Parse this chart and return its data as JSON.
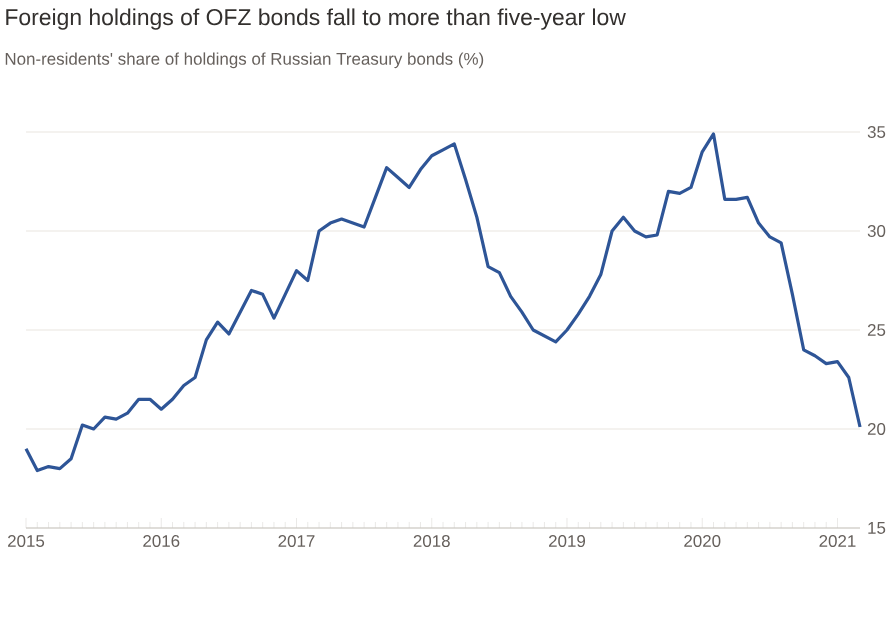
{
  "chart_data": {
    "type": "line",
    "title": "Foreign holdings of OFZ bonds fall to more than five-year low",
    "subtitle": "Non-residents' share of holdings of Russian Treasury bonds (%)",
    "x": [
      "2015-01",
      "2015-02",
      "2015-03",
      "2015-04",
      "2015-05",
      "2015-06",
      "2015-07",
      "2015-08",
      "2015-09",
      "2015-10",
      "2015-11",
      "2015-12",
      "2016-01",
      "2016-02",
      "2016-03",
      "2016-04",
      "2016-05",
      "2016-06",
      "2016-07",
      "2016-08",
      "2016-09",
      "2016-10",
      "2016-11",
      "2016-12",
      "2017-01",
      "2017-02",
      "2017-03",
      "2017-04",
      "2017-05",
      "2017-06",
      "2017-07",
      "2017-08",
      "2017-09",
      "2017-10",
      "2017-11",
      "2017-12",
      "2018-01",
      "2018-02",
      "2018-03",
      "2018-04",
      "2018-05",
      "2018-06",
      "2018-07",
      "2018-08",
      "2018-09",
      "2018-10",
      "2018-11",
      "2018-12",
      "2019-01",
      "2019-02",
      "2019-03",
      "2019-04",
      "2019-05",
      "2019-06",
      "2019-07",
      "2019-08",
      "2019-09",
      "2019-10",
      "2019-11",
      "2019-12",
      "2020-01",
      "2020-02",
      "2020-03",
      "2020-04",
      "2020-05",
      "2020-06",
      "2020-07",
      "2020-08",
      "2020-09",
      "2020-10",
      "2020-11",
      "2020-12",
      "2021-01",
      "2021-02",
      "2021-03"
    ],
    "series": [
      {
        "color": "#2e5597",
        "line_style": "solid",
        "values": [
          19.0,
          17.9,
          18.1,
          18.0,
          18.5,
          20.2,
          20.0,
          20.6,
          20.5,
          20.8,
          21.5,
          21.5,
          21.0,
          21.5,
          22.2,
          22.6,
          24.5,
          25.4,
          24.8,
          25.9,
          27.0,
          26.8,
          25.6,
          26.8,
          28.0,
          27.5,
          30.0,
          30.4,
          30.6,
          30.4,
          30.2,
          31.7,
          33.2,
          32.7,
          32.2,
          33.1,
          33.8,
          34.1,
          34.4,
          32.6,
          30.7,
          28.2,
          27.9,
          26.7,
          25.9,
          25.0,
          24.7,
          24.4,
          25.0,
          25.8,
          26.7,
          27.8,
          30.0,
          30.7,
          30.0,
          29.7,
          29.8,
          32.0,
          31.9,
          32.2,
          34.0,
          34.9,
          31.6,
          31.6,
          31.7,
          30.4,
          29.7,
          29.4,
          26.8,
          24.0,
          23.7,
          23.3,
          23.4,
          22.6,
          20.1
        ]
      }
    ],
    "xlim": [
      "2015-01",
      "2021-03"
    ],
    "xticks": [
      {
        "value": "2015-01",
        "label": "2015"
      },
      {
        "value": "2016-01",
        "label": "2016"
      },
      {
        "value": "2017-01",
        "label": "2017"
      },
      {
        "value": "2018-01",
        "label": "2018"
      },
      {
        "value": "2019-01",
        "label": "2019"
      },
      {
        "value": "2020-01",
        "label": "2020"
      },
      {
        "value": "2021-01",
        "label": "2021"
      }
    ],
    "ylim": [
      15,
      35
    ],
    "yticks": [
      15,
      20,
      25,
      30,
      35
    ],
    "grid": "y"
  }
}
